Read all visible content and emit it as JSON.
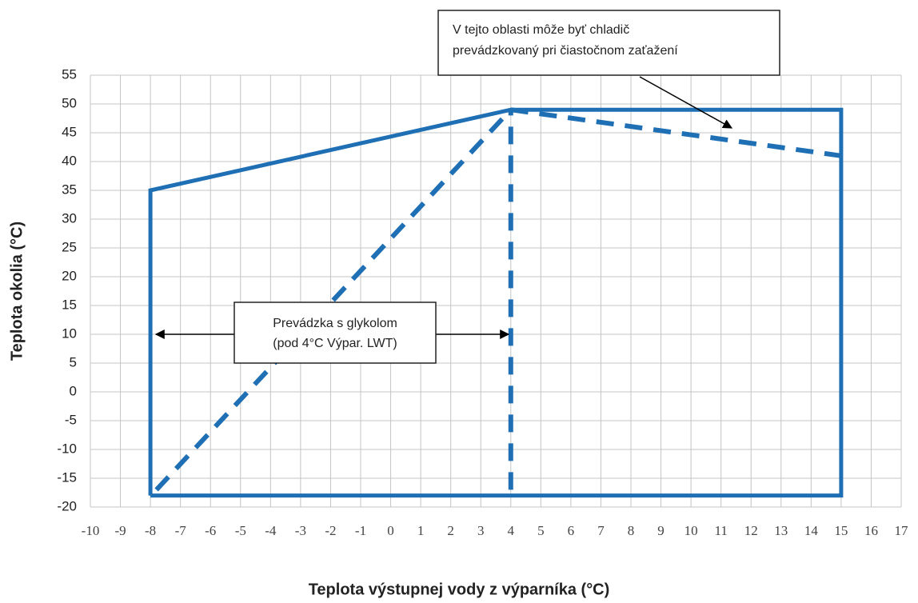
{
  "chart_data": {
    "type": "line",
    "y_label": "Teplota okolia (°C)",
    "x_label": "Teplota výstupnej vody z výparníka (°C)",
    "xlim": [
      -10,
      17
    ],
    "ylim": [
      -20,
      55
    ],
    "xticks": [
      -10,
      -9,
      -8,
      -7,
      -6,
      -5,
      -4,
      -3,
      -2,
      -1,
      0,
      1,
      2,
      3,
      4,
      5,
      6,
      7,
      8,
      9,
      10,
      11,
      12,
      13,
      14,
      15,
      16,
      17
    ],
    "yticks": [
      -20,
      -15,
      -10,
      -5,
      0,
      5,
      10,
      15,
      20,
      25,
      30,
      35,
      40,
      45,
      50,
      55
    ],
    "grid": true,
    "series": [
      {
        "color": "#1f6fb5",
        "dashed": false,
        "x": [
          -8,
          -8,
          4,
          15,
          15,
          -8
        ],
        "values": [
          -18,
          35,
          49,
          49,
          -18,
          -18
        ]
      },
      {
        "color": "#1f6fb5",
        "dashed": true,
        "x": [
          4,
          4
        ],
        "values": [
          -17,
          49
        ]
      },
      {
        "color": "#1f6fb5",
        "dashed": true,
        "x": [
          -7.8,
          4
        ],
        "values": [
          -17,
          49
        ]
      },
      {
        "color": "#1f6fb5",
        "dashed": true,
        "x": [
          4,
          15
        ],
        "values": [
          49,
          41
        ]
      }
    ],
    "annotations": [
      {
        "lines": [
          "V  tejto  oblasti  môže  byť  chladič",
          "prevádzkovaný pri čiastočnom zaťažení"
        ]
      },
      {
        "lines": [
          "Prevádzka s glykolom",
          "(pod 4°C Výpar. LWT)"
        ]
      }
    ]
  }
}
